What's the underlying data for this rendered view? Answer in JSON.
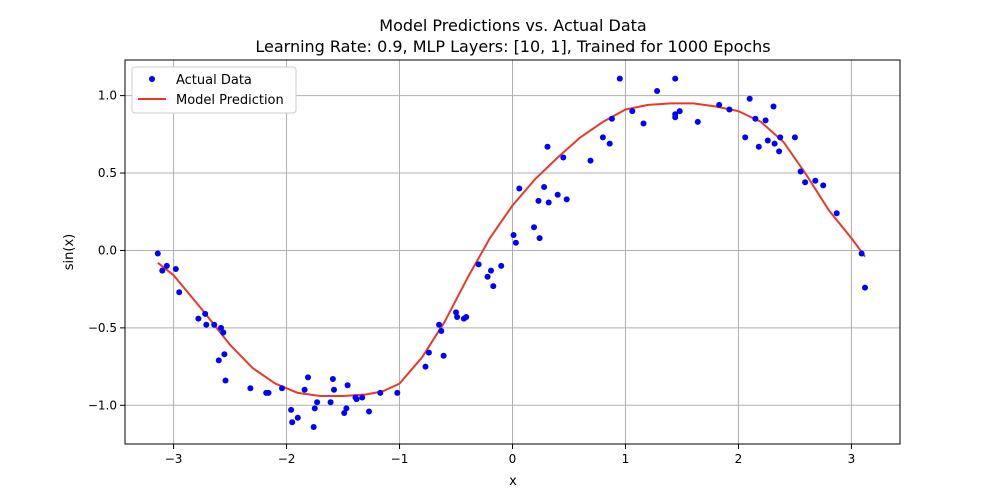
{
  "chart_data": {
    "type": "scatter+line",
    "title": "Model Predictions vs. Actual Data",
    "subtitle": "Learning Rate: 0.9, MLP Layers: [10, 1], Trained for 1000 Epochs",
    "xlabel": "x",
    "ylabel": "sin(x)",
    "xlim": [
      -3.43,
      3.43
    ],
    "ylim": [
      -1.25,
      1.23
    ],
    "xticks": [
      -3,
      -2,
      -1,
      0,
      1,
      2,
      3
    ],
    "xtick_labels": [
      "−3",
      "−2",
      "−1",
      "0",
      "1",
      "2",
      "3"
    ],
    "yticks": [
      -1.0,
      -0.5,
      0.0,
      0.5,
      1.0
    ],
    "ytick_labels": [
      "−1.0",
      "−0.5",
      "0.0",
      "0.5",
      "1.0"
    ],
    "grid": true,
    "legend_position": "top-left",
    "series": [
      {
        "name": "Actual Data",
        "kind": "scatter",
        "color": "#0000ff",
        "points": [
          [
            -3.14,
            -0.02
          ],
          [
            -3.1,
            -0.13
          ],
          [
            -3.06,
            -0.1
          ],
          [
            -2.98,
            -0.12
          ],
          [
            -2.95,
            -0.27
          ],
          [
            -2.78,
            -0.44
          ],
          [
            -2.72,
            -0.41
          ],
          [
            -2.71,
            -0.48
          ],
          [
            -2.64,
            -0.48
          ],
          [
            -2.6,
            -0.71
          ],
          [
            -2.58,
            -0.5
          ],
          [
            -2.56,
            -0.53
          ],
          [
            -2.55,
            -0.67
          ],
          [
            -2.54,
            -0.84
          ],
          [
            -2.32,
            -0.89
          ],
          [
            -2.18,
            -0.92
          ],
          [
            -2.16,
            -0.92
          ],
          [
            -2.04,
            -0.89
          ],
          [
            -1.96,
            -1.03
          ],
          [
            -1.95,
            -1.11
          ],
          [
            -1.9,
            -1.08
          ],
          [
            -1.84,
            -0.9
          ],
          [
            -1.81,
            -0.82
          ],
          [
            -1.76,
            -1.14
          ],
          [
            -1.75,
            -1.02
          ],
          [
            -1.73,
            -0.98
          ],
          [
            -1.61,
            -0.98
          ],
          [
            -1.59,
            -0.83
          ],
          [
            -1.58,
            -0.9
          ],
          [
            -1.49,
            -1.05
          ],
          [
            -1.47,
            -1.02
          ],
          [
            -1.46,
            -0.87
          ],
          [
            -1.39,
            -0.95
          ],
          [
            -1.38,
            -0.96
          ],
          [
            -1.33,
            -0.95
          ],
          [
            -1.27,
            -1.04
          ],
          [
            -1.17,
            -0.92
          ],
          [
            -1.02,
            -0.92
          ],
          [
            -0.77,
            -0.75
          ],
          [
            -0.74,
            -0.66
          ],
          [
            -0.65,
            -0.48
          ],
          [
            -0.63,
            -0.52
          ],
          [
            -0.61,
            -0.68
          ],
          [
            -0.5,
            -0.4
          ],
          [
            -0.49,
            -0.43
          ],
          [
            -0.43,
            -0.44
          ],
          [
            -0.41,
            -0.43
          ],
          [
            -0.3,
            -0.09
          ],
          [
            -0.22,
            -0.17
          ],
          [
            -0.19,
            -0.13
          ],
          [
            -0.17,
            -0.23
          ],
          [
            -0.1,
            -0.1
          ],
          [
            0.01,
            0.1
          ],
          [
            0.03,
            0.05
          ],
          [
            0.06,
            0.4
          ],
          [
            0.19,
            0.15
          ],
          [
            0.23,
            0.32
          ],
          [
            0.24,
            0.08
          ],
          [
            0.28,
            0.41
          ],
          [
            0.31,
            0.67
          ],
          [
            0.32,
            0.31
          ],
          [
            0.4,
            0.36
          ],
          [
            0.45,
            0.6
          ],
          [
            0.48,
            0.33
          ],
          [
            0.69,
            0.58
          ],
          [
            0.8,
            0.73
          ],
          [
            0.86,
            0.69
          ],
          [
            0.88,
            0.85
          ],
          [
            0.95,
            1.11
          ],
          [
            1.06,
            0.9
          ],
          [
            1.16,
            0.82
          ],
          [
            1.28,
            1.03
          ],
          [
            1.44,
            1.11
          ],
          [
            1.44,
            0.88
          ],
          [
            1.44,
            0.86
          ],
          [
            1.48,
            0.9
          ],
          [
            1.64,
            0.83
          ],
          [
            1.83,
            0.94
          ],
          [
            1.92,
            0.91
          ],
          [
            2.06,
            0.73
          ],
          [
            2.1,
            0.98
          ],
          [
            2.15,
            0.85
          ],
          [
            2.18,
            0.67
          ],
          [
            2.24,
            0.84
          ],
          [
            2.26,
            0.71
          ],
          [
            2.31,
            0.93
          ],
          [
            2.32,
            0.69
          ],
          [
            2.36,
            0.64
          ],
          [
            2.37,
            0.73
          ],
          [
            2.5,
            0.73
          ],
          [
            2.55,
            0.51
          ],
          [
            2.59,
            0.44
          ],
          [
            2.68,
            0.45
          ],
          [
            2.75,
            0.42
          ],
          [
            2.87,
            0.24
          ],
          [
            3.09,
            -0.02
          ],
          [
            3.12,
            -0.24
          ]
        ]
      },
      {
        "name": "Model Prediction",
        "kind": "line",
        "color": "#e8392b",
        "points": [
          [
            -3.14,
            -0.08
          ],
          [
            -3.0,
            -0.16
          ],
          [
            -2.75,
            -0.38
          ],
          [
            -2.5,
            -0.61
          ],
          [
            -2.3,
            -0.76
          ],
          [
            -2.1,
            -0.86
          ],
          [
            -1.9,
            -0.92
          ],
          [
            -1.7,
            -0.94
          ],
          [
            -1.5,
            -0.94
          ],
          [
            -1.3,
            -0.93
          ],
          [
            -1.15,
            -0.91
          ],
          [
            -1.0,
            -0.86
          ],
          [
            -0.8,
            -0.69
          ],
          [
            -0.6,
            -0.46
          ],
          [
            -0.4,
            -0.18
          ],
          [
            -0.2,
            0.08
          ],
          [
            0.0,
            0.29
          ],
          [
            0.2,
            0.46
          ],
          [
            0.4,
            0.6
          ],
          [
            0.6,
            0.73
          ],
          [
            0.8,
            0.83
          ],
          [
            1.0,
            0.91
          ],
          [
            1.2,
            0.94
          ],
          [
            1.4,
            0.95
          ],
          [
            1.6,
            0.95
          ],
          [
            1.8,
            0.93
          ],
          [
            2.0,
            0.9
          ],
          [
            2.2,
            0.83
          ],
          [
            2.4,
            0.7
          ],
          [
            2.6,
            0.49
          ],
          [
            2.8,
            0.26
          ],
          [
            3.0,
            0.08
          ],
          [
            3.12,
            -0.04
          ]
        ]
      }
    ]
  }
}
